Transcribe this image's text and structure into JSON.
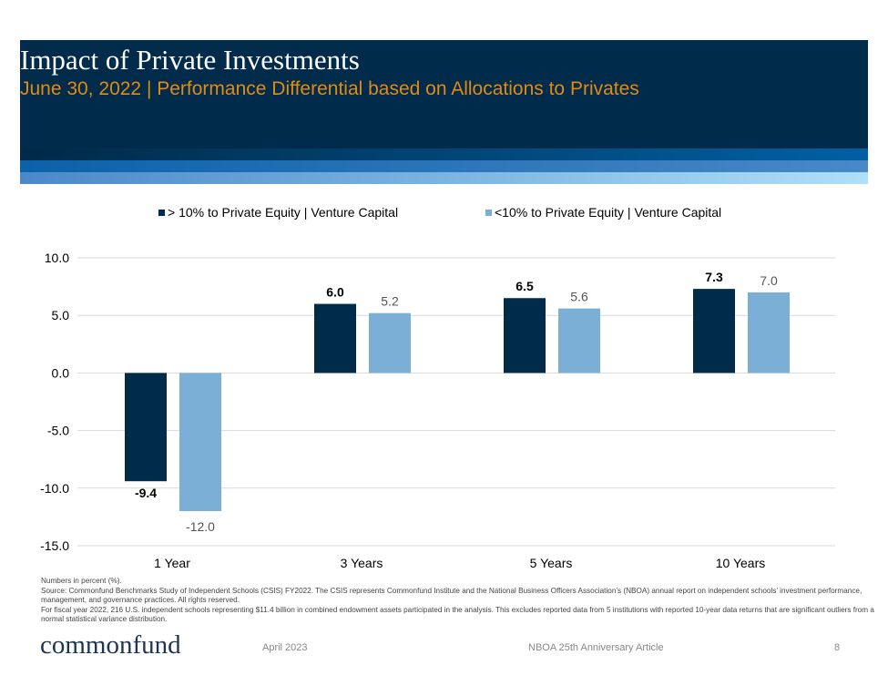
{
  "header": {
    "title": "Impact of Private Investments",
    "subtitle": "June 30, 2022 | Performance Differential based on Allocations to Privates"
  },
  "chart_data": {
    "type": "bar",
    "categories": [
      "1 Year",
      "3 Years",
      "5 Years",
      "10 Years"
    ],
    "series": [
      {
        "name": "> 10% to Private Equity | Venture Capital",
        "color": "#002b4a",
        "values": [
          -9.4,
          6.0,
          6.5,
          7.3
        ]
      },
      {
        "name": "<10% to Private Equity | Venture Capital",
        "color": "#7bafd6",
        "values": [
          -12.0,
          5.2,
          5.6,
          7.0
        ]
      }
    ],
    "yticks": [
      "10.0",
      "5.0",
      "0.0",
      "-5.0",
      "-10.0",
      "-15.0"
    ],
    "ylim": [
      -15,
      10
    ],
    "grid": true,
    "legend": "top"
  },
  "notes": [
    "Numbers in percent (%).",
    "Source: Commonfund Benchmarks Study of Independent Schools (CSIS) FY2022. The CSIS represents Commonfund Institute and the National Business Officers Association’s (NBOA) annual report on independent schools’ investment performance, management, and governance practices. All rights reserved.",
    "For fiscal year 2022, 216 U.S. independent schools representing $11.4 billion in combined endowment assets participated in the analysis. This excludes reported data from 5 institutions with reported 10-year data returns that are significant outliers from a normal statistical variance distribution."
  ],
  "footer": {
    "logo": "commonfund",
    "date": "April 2023",
    "article": "NBOA 25th Anniversary Article",
    "page": "8"
  }
}
